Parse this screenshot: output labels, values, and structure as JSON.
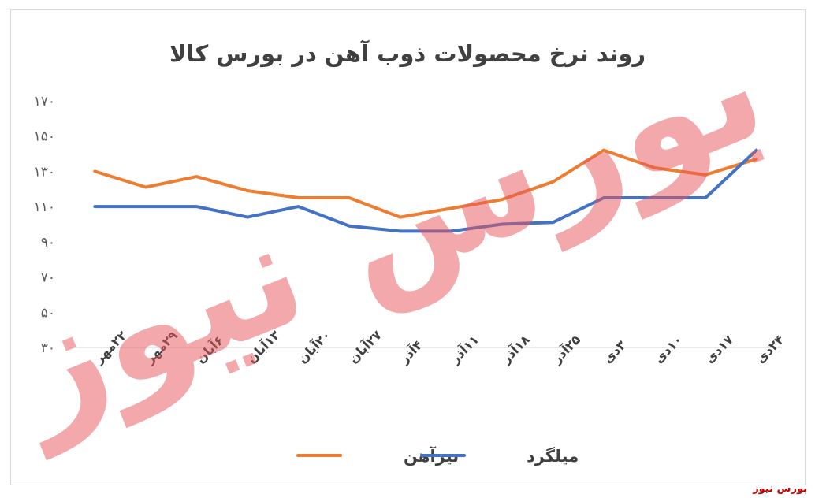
{
  "chart_data": {
    "type": "line",
    "title": "روند نرخ محصولات ذوب آهن در بورس کالا",
    "categories": [
      "۲۲مهر",
      "۲۹مهر",
      "۶آبان",
      "۱۳آبان",
      "۲۰آبان",
      "۲۷آبان",
      "۴آذر",
      "۱۱آذر",
      "۱۸آذر",
      "۲۵آذر",
      "۳دی",
      "۱۰دی",
      "۱۷دی",
      "۲۴دی"
    ],
    "series": [
      {
        "name": "تیرآهن",
        "color": "#ed7d31",
        "values": [
          130,
          121,
          127,
          119,
          115,
          115,
          104,
          109,
          114,
          124,
          142,
          132,
          128,
          137
        ]
      },
      {
        "name": "میلگرد",
        "color": "#4472c4",
        "values": [
          110,
          110,
          110,
          104,
          110,
          99,
          96,
          96,
          100,
          101,
          115,
          115,
          115,
          142
        ]
      }
    ],
    "ylim": [
      30,
      170
    ],
    "yticks": [
      "۳۰",
      "۵۰",
      "۷۰",
      "۹۰",
      "۱۱۰",
      "۱۳۰",
      "۱۵۰",
      "۱۷۰"
    ],
    "ytick_values": [
      30,
      50,
      70,
      90,
      110,
      130,
      150,
      170
    ],
    "grid": false,
    "legend_position": "bottom"
  },
  "watermark": {
    "text": "بورس نیوز",
    "color": "#e8565a"
  },
  "credit": "بورس نیوز"
}
